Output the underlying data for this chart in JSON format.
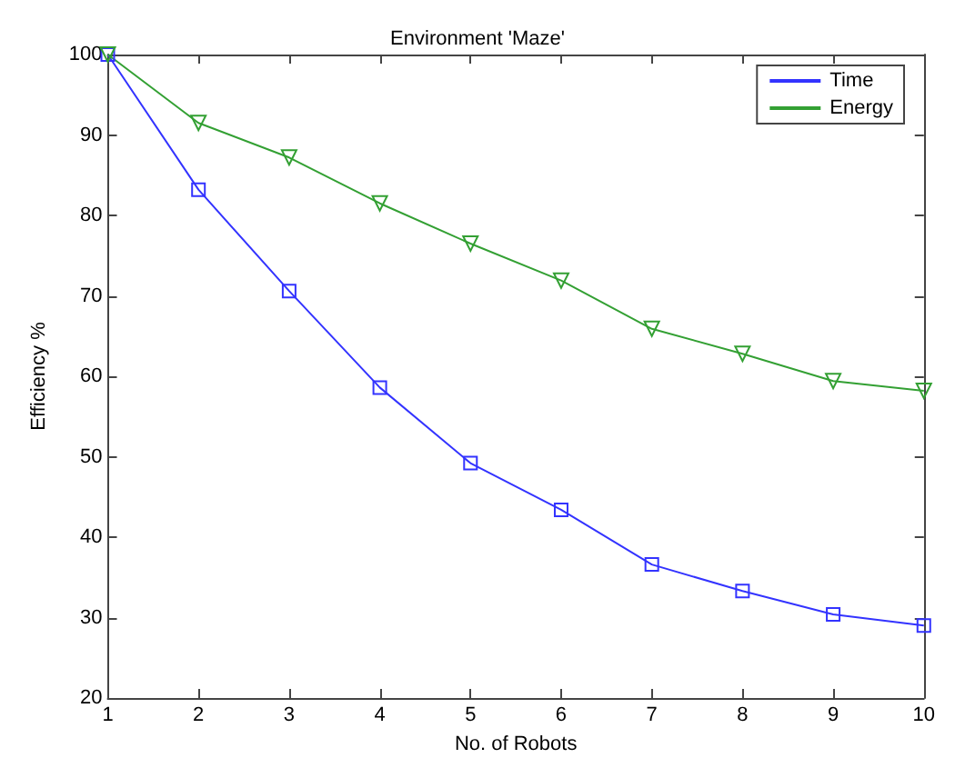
{
  "chart_data": {
    "type": "line",
    "title": "Environment 'Maze'",
    "xlabel": "No. of Robots",
    "ylabel": "Efficiency %",
    "x": [
      1,
      2,
      3,
      4,
      5,
      6,
      7,
      8,
      9,
      10
    ],
    "series": [
      {
        "name": "Time",
        "color": "#3333ff",
        "marker": "square",
        "values": [
          100,
          83.2,
          70.6,
          58.6,
          49.2,
          43.4,
          36.6,
          33.3,
          30.4,
          29.0
        ]
      },
      {
        "name": "Energy",
        "color": "#33a033",
        "marker": "triangle",
        "values": [
          100,
          91.5,
          87.2,
          81.5,
          76.5,
          71.9,
          65.9,
          62.8,
          59.4,
          58.2
        ]
      }
    ],
    "xlim": [
      1,
      10
    ],
    "xticks": [
      1,
      2,
      3,
      4,
      5,
      6,
      7,
      8,
      9,
      10
    ],
    "ylim": [
      20,
      100
    ],
    "yticks": [
      20,
      30,
      40,
      50,
      60,
      70,
      80,
      90,
      100
    ],
    "grid": false,
    "legend": "top right",
    "line_style": "solid"
  }
}
